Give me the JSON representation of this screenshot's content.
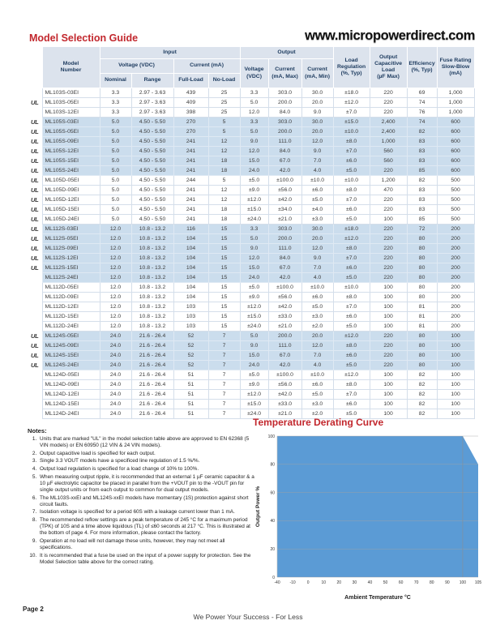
{
  "header": {
    "title": "Model Selection Guide",
    "website": "www.micropowerdirect.com"
  },
  "table": {
    "header": {
      "model": "Model\nNumber",
      "input": "Input",
      "output": "Output",
      "voltage_vdc": "Voltage (VDC)",
      "current_ma": "Current (mA)",
      "nominal": "Nominal",
      "range": "Range",
      "full_load": "Full-Load",
      "no_load": "No-Load",
      "out_voltage": "Voltage\n(VDC)",
      "out_current_max": "Current\n(mA, Max)",
      "out_current_min": "Current\n(mA, Min)",
      "load_regulation": "Load\nRegulation\n(%, Typ)",
      "cap_load": "Output\nCapacitive\nLoad\n(µF Max)",
      "efficiency": "Efficiency\n(%, Typ)",
      "fuse": "Fuse Rating\nSlow-Blow\n(mA)"
    },
    "ul_mark": "UL",
    "rows": [
      {
        "ul": false,
        "model": "ML103S-03EI",
        "shaded": false,
        "values": [
          "3.3",
          "2.97 - 3.63",
          "439",
          "25",
          "3.3",
          "303.0",
          "30.0",
          "±18.0",
          "220",
          "69",
          "1,000"
        ]
      },
      {
        "ul": true,
        "model": "ML103S-05EI",
        "shaded": false,
        "values": [
          "3.3",
          "2.97 - 3.63",
          "409",
          "25",
          "5.0",
          "200.0",
          "20.0",
          "±12.0",
          "220",
          "74",
          "1,000"
        ]
      },
      {
        "ul": false,
        "model": "ML103S-12EI",
        "shaded": false,
        "values": [
          "3.3",
          "2.97 - 3.63",
          "398",
          "25",
          "12.0",
          "84.0",
          "9.0",
          "±7.0",
          "220",
          "76",
          "1,000"
        ]
      },
      {
        "ul": true,
        "model": "ML105S-03EI",
        "shaded": true,
        "values": [
          "5.0",
          "4.50 - 5.50",
          "270",
          "5",
          "3.3",
          "303.0",
          "30.0",
          "±15.0",
          "2,400",
          "74",
          "600"
        ]
      },
      {
        "ul": true,
        "model": "ML105S-05EI",
        "shaded": true,
        "values": [
          "5.0",
          "4.50 - 5.50",
          "270",
          "5",
          "5.0",
          "200.0",
          "20.0",
          "±10.0",
          "2,400",
          "82",
          "600"
        ]
      },
      {
        "ul": true,
        "model": "ML105S-09EI",
        "shaded": true,
        "values": [
          "5.0",
          "4.50 - 5.50",
          "241",
          "12",
          "9.0",
          "111.0",
          "12.0",
          "±8.0",
          "1,000",
          "83",
          "600"
        ]
      },
      {
        "ul": true,
        "model": "ML105S-12EI",
        "shaded": true,
        "values": [
          "5.0",
          "4.50 - 5.50",
          "241",
          "12",
          "12.0",
          "84.0",
          "9.0",
          "±7.0",
          "560",
          "83",
          "600"
        ]
      },
      {
        "ul": true,
        "model": "ML105S-15EI",
        "shaded": true,
        "values": [
          "5.0",
          "4.50 - 5.50",
          "241",
          "18",
          "15.0",
          "67.0",
          "7.0",
          "±6.0",
          "560",
          "83",
          "600"
        ]
      },
      {
        "ul": true,
        "model": "ML105S-24EI",
        "shaded": true,
        "values": [
          "5.0",
          "4.50 - 5.50",
          "241",
          "18",
          "24.0",
          "42.0",
          "4.0",
          "±5.0",
          "220",
          "85",
          "600"
        ]
      },
      {
        "ul": true,
        "model": "ML105D-05EI",
        "shaded": false,
        "values": [
          "5.0",
          "4.50 - 5.50",
          "244",
          "5",
          "±5.0",
          "±100.0",
          "±10.0",
          "±10.0",
          "1,200",
          "82",
          "500"
        ]
      },
      {
        "ul": true,
        "model": "ML105D-09EI",
        "shaded": false,
        "values": [
          "5.0",
          "4.50 - 5.50",
          "241",
          "12",
          "±9.0",
          "±56.0",
          "±6.0",
          "±8.0",
          "470",
          "83",
          "500"
        ]
      },
      {
        "ul": true,
        "model": "ML105D-12EI",
        "shaded": false,
        "values": [
          "5.0",
          "4.50 - 5.50",
          "241",
          "12",
          "±12.0",
          "±42.0",
          "±5.0",
          "±7.0",
          "220",
          "83",
          "500"
        ]
      },
      {
        "ul": true,
        "model": "ML105D-15EI",
        "shaded": false,
        "values": [
          "5.0",
          "4.50 - 5.50",
          "241",
          "18",
          "±15.0",
          "±34.0",
          "±4.0",
          "±6.0",
          "220",
          "83",
          "500"
        ]
      },
      {
        "ul": true,
        "model": "ML105D-24EI",
        "shaded": false,
        "values": [
          "5.0",
          "4.50 - 5.50",
          "241",
          "18",
          "±24.0",
          "±21.0",
          "±3.0",
          "±5.0",
          "100",
          "85",
          "500"
        ]
      },
      {
        "ul": true,
        "model": "ML112S-03EI",
        "shaded": true,
        "values": [
          "12.0",
          "10.8 - 13.2",
          "116",
          "15",
          "3.3",
          "303.0",
          "30.0",
          "±18.0",
          "220",
          "72",
          "200"
        ]
      },
      {
        "ul": true,
        "model": "ML112S-05EI",
        "shaded": true,
        "values": [
          "12.0",
          "10.8 - 13.2",
          "104",
          "15",
          "5.0",
          "200.0",
          "20.0",
          "±12.0",
          "220",
          "80",
          "200"
        ]
      },
      {
        "ul": true,
        "model": "ML112S-09EI",
        "shaded": true,
        "values": [
          "12.0",
          "10.8 - 13.2",
          "104",
          "15",
          "9.0",
          "111.0",
          "12.0",
          "±8.0",
          "220",
          "80",
          "200"
        ]
      },
      {
        "ul": true,
        "model": "ML112S-12EI",
        "shaded": true,
        "values": [
          "12.0",
          "10.8 - 13.2",
          "104",
          "15",
          "12.0",
          "84.0",
          "9.0",
          "±7.0",
          "220",
          "80",
          "200"
        ]
      },
      {
        "ul": true,
        "model": "ML112S-15EI",
        "shaded": true,
        "values": [
          "12.0",
          "10.8 - 13.2",
          "104",
          "15",
          "15.0",
          "67.0",
          "7.0",
          "±6.0",
          "220",
          "80",
          "200"
        ]
      },
      {
        "ul": false,
        "model": "ML112S-24EI",
        "shaded": true,
        "values": [
          "12.0",
          "10.8 - 13.2",
          "104",
          "15",
          "24.0",
          "42.0",
          "4.0",
          "±5.0",
          "220",
          "80",
          "200"
        ]
      },
      {
        "ul": false,
        "model": "ML112D-05EI",
        "shaded": false,
        "values": [
          "12.0",
          "10.8 - 13.2",
          "104",
          "15",
          "±5.0",
          "±100.0",
          "±10.0",
          "±10.0",
          "100",
          "80",
          "200"
        ]
      },
      {
        "ul": false,
        "model": "ML112D-09EI",
        "shaded": false,
        "values": [
          "12.0",
          "10.8 - 13.2",
          "104",
          "15",
          "±9.0",
          "±56.0",
          "±6.0",
          "±8.0",
          "100",
          "80",
          "200"
        ]
      },
      {
        "ul": false,
        "model": "ML112D-12EI",
        "shaded": false,
        "values": [
          "12.0",
          "10.8 - 13.2",
          "103",
          "15",
          "±12.0",
          "±42.0",
          "±5.0",
          "±7.0",
          "100",
          "81",
          "200"
        ]
      },
      {
        "ul": false,
        "model": "ML112D-15EI",
        "shaded": false,
        "values": [
          "12.0",
          "10.8 - 13.2",
          "103",
          "15",
          "±15.0",
          "±33.0",
          "±3.0",
          "±6.0",
          "100",
          "81",
          "200"
        ]
      },
      {
        "ul": false,
        "model": "ML112D-24EI",
        "shaded": false,
        "values": [
          "12.0",
          "10.8 - 13.2",
          "103",
          "15",
          "±24.0",
          "±21.0",
          "±2.0",
          "±5.0",
          "100",
          "81",
          "200"
        ]
      },
      {
        "ul": true,
        "model": "ML124S-05EI",
        "shaded": true,
        "values": [
          "24.0",
          "21.6 - 26.4",
          "52",
          "7",
          "5.0",
          "200.0",
          "20.0",
          "±12.0",
          "220",
          "80",
          "100"
        ]
      },
      {
        "ul": true,
        "model": "ML124S-09EI",
        "shaded": true,
        "values": [
          "24.0",
          "21.6 - 26.4",
          "52",
          "7",
          "9.0",
          "111.0",
          "12.0",
          "±8.0",
          "220",
          "80",
          "100"
        ]
      },
      {
        "ul": true,
        "model": "ML124S-15EI",
        "shaded": true,
        "values": [
          "24.0",
          "21.6 - 26.4",
          "52",
          "7",
          "15.0",
          "67.0",
          "7.0",
          "±6.0",
          "220",
          "80",
          "100"
        ]
      },
      {
        "ul": true,
        "model": "ML124S-24EI",
        "shaded": true,
        "values": [
          "24.0",
          "21.6 - 26.4",
          "52",
          "7",
          "24.0",
          "42.0",
          "4.0",
          "±5.0",
          "220",
          "80",
          "100"
        ]
      },
      {
        "ul": false,
        "model": "ML124D-05EI",
        "shaded": false,
        "values": [
          "24.0",
          "21.6 - 26.4",
          "51",
          "7",
          "±5.0",
          "±100.0",
          "±10.0",
          "±12.0",
          "100",
          "82",
          "100"
        ]
      },
      {
        "ul": false,
        "model": "ML124D-09EI",
        "shaded": false,
        "values": [
          "24.0",
          "21.6 - 26.4",
          "51",
          "7",
          "±9.0",
          "±56.0",
          "±6.0",
          "±8.0",
          "100",
          "82",
          "100"
        ]
      },
      {
        "ul": false,
        "model": "ML124D-12EI",
        "shaded": false,
        "values": [
          "24.0",
          "21.6 - 26.4",
          "51",
          "7",
          "±12.0",
          "±42.0",
          "±5.0",
          "±7.0",
          "100",
          "82",
          "100"
        ]
      },
      {
        "ul": false,
        "model": "ML124D-15EI",
        "shaded": false,
        "values": [
          "24.0",
          "21.6 - 26.4",
          "51",
          "7",
          "±15.0",
          "±33.0",
          "±3.0",
          "±6.0",
          "100",
          "82",
          "100"
        ]
      },
      {
        "ul": false,
        "model": "ML124D-24EI",
        "shaded": false,
        "values": [
          "24.0",
          "21.6 - 26.4",
          "51",
          "7",
          "±24.0",
          "±21.0",
          "±2.0",
          "±5.0",
          "100",
          "82",
          "100"
        ]
      }
    ]
  },
  "notes": {
    "heading": "Notes:",
    "items": [
      "Units that are marked \"UL\" in the model selection table above are approved to EN 62368 (5 VIN models) or EN 60950 (12 VIN & 24 VIN models).",
      "Output capacitive load is specified for each output.",
      "Single 3.3 VOUT models have a specificed line regulation of 1.5 %/%.",
      "Output load regulation is specified for a load change of 10% to 100%.",
      "When measuring output ripple, it is recommended that an external 1 µF ceramic capacitor & a 10 µF electrolytic capacitor be placed in parallel from the +VOUT pin to the -VOUT pin for single output units or from each output to common for dual output models.",
      "The ML103S-xxEI and ML124S-xxEI models have momentary (1S) protection against short circuit faults.",
      "Isolation voltage is specified for a period 60S with a leakage current lower than 1 mA.",
      "The recommended reflow settings are a peak temperature of 245 °C for a maximum period (TPK) of 10S and a time above liquidous (TL) of ≤60 seconds at 217 °C. This is illustrated at the bottom of page 4. For more information, please contact the factory.",
      "Operation at no load will not damage these units, however, they may not meet all specifications.",
      "It is recommended that a fuse be used on the input of  a power supply for protection. See the Model Selection table above for the correct rating."
    ]
  },
  "chart_data": {
    "type": "area",
    "title": "Temperature Derating Curve",
    "x": [
      -40,
      -10,
      0,
      10,
      20,
      30,
      40,
      50,
      60,
      70,
      80,
      90,
      100,
      105
    ],
    "values": [
      100,
      100,
      100,
      100,
      100,
      100,
      100,
      100,
      100,
      100,
      100,
      100,
      100,
      80
    ],
    "xlabel": "Ambient Temperature °C",
    "ylabel": "Output Power %",
    "ylim": [
      0,
      100
    ],
    "yticks": [
      0,
      20,
      40,
      60,
      80,
      100
    ],
    "fill_color": "#5b9bd5",
    "grid": true,
    "legend": "none",
    "x_axis_type": "category"
  },
  "footer": {
    "page_label": "Page  2",
    "tagline": "We Power Your Success - For Less"
  }
}
